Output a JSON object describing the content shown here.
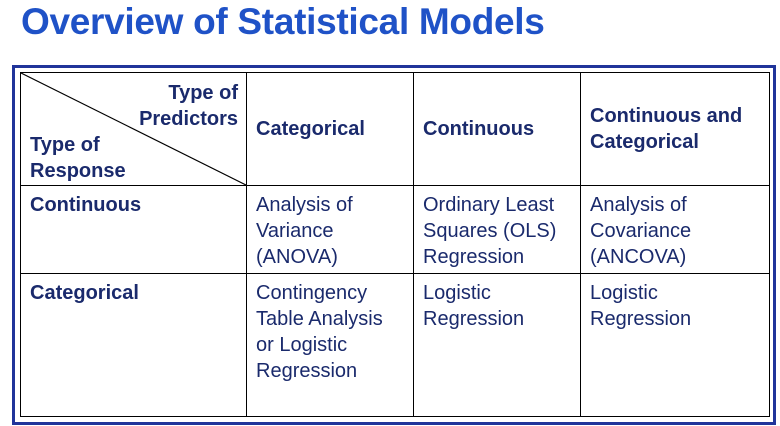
{
  "title": "Overview of Statistical Models",
  "table": {
    "corner": {
      "predictors_label": [
        "Type of",
        "Predictors"
      ],
      "response_label": [
        "Type of",
        "Response"
      ]
    },
    "columns": [
      [
        "Categorical"
      ],
      [
        "Continuous"
      ],
      [
        "Continuous and",
        "Categorical"
      ]
    ],
    "rows": [
      {
        "label": "Continuous",
        "cells": [
          [
            "Analysis of",
            "Variance",
            "(ANOVA)"
          ],
          [
            "Ordinary Least",
            "Squares (OLS)",
            "Regression"
          ],
          [
            "Analysis of",
            "Covariance",
            "(ANCOVA)"
          ]
        ]
      },
      {
        "label": "Categorical",
        "cells": [
          [
            "Contingency",
            "Table Analysis",
            "or Logistic",
            "Regression"
          ],
          [
            "Logistic",
            "Regression"
          ],
          [
            "Logistic",
            "Regression"
          ]
        ]
      }
    ]
  },
  "colors": {
    "title": "#1f52c7",
    "frame": "#20349a",
    "text": "#1a2a6c"
  }
}
